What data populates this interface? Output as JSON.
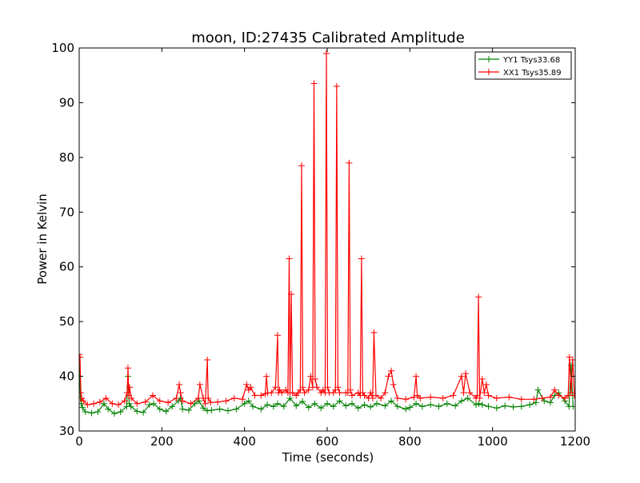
{
  "chart_data": {
    "type": "line",
    "title": "moon, ID:27435 Calibrated Amplitude",
    "xlabel": "Time (seconds)",
    "ylabel": "Power in Kelvin",
    "xlim": [
      0,
      1200
    ],
    "ylim": [
      30,
      100
    ],
    "xticks": [
      0,
      200,
      400,
      600,
      800,
      1000,
      1200
    ],
    "yticks": [
      30,
      40,
      50,
      60,
      70,
      80,
      90,
      100
    ],
    "xtick_labels": [
      "0",
      "200",
      "400",
      "600",
      "800",
      "1000",
      "1200"
    ],
    "ytick_labels": [
      "30",
      "40",
      "50",
      "60",
      "70",
      "80",
      "90",
      "100"
    ],
    "grid": false,
    "legend_position": "top-right",
    "marker": "+",
    "series": [
      {
        "name": "YY1 Tsys33.68",
        "color": "#008000",
        "x": [
          0,
          3,
          5,
          8,
          15,
          30,
          45,
          60,
          70,
          85,
          100,
          115,
          118,
          121,
          125,
          140,
          155,
          170,
          180,
          195,
          210,
          225,
          240,
          245,
          250,
          265,
          280,
          290,
          300,
          310,
          320,
          340,
          360,
          380,
          400,
          410,
          420,
          440,
          455,
          470,
          480,
          495,
          510,
          525,
          540,
          555,
          570,
          585,
          600,
          615,
          630,
          645,
          660,
          675,
          690,
          705,
          720,
          740,
          755,
          770,
          790,
          800,
          815,
          830,
          850,
          870,
          890,
          910,
          925,
          940,
          960,
          967,
          975,
          990,
          1010,
          1030,
          1050,
          1070,
          1090,
          1105,
          1110,
          1125,
          1140,
          1150,
          1160,
          1175,
          1185,
          1190,
          1195
        ],
        "values": [
          43.5,
          36,
          35,
          34.3,
          33.5,
          33.3,
          33.5,
          35,
          34,
          33.2,
          33.5,
          34.5,
          40,
          35,
          34.5,
          33.6,
          33.4,
          34.8,
          35,
          34,
          33.6,
          34.5,
          35.5,
          36,
          34,
          33.8,
          35,
          35.5,
          34.2,
          33.7,
          33.8,
          34,
          33.7,
          34,
          35,
          35.5,
          34.5,
          34,
          34.8,
          34.5,
          35,
          34.5,
          36,
          34.6,
          35.4,
          34.3,
          35,
          34.2,
          35,
          34.5,
          35.5,
          34.6,
          35,
          34.2,
          34.8,
          34.4,
          35,
          34.6,
          35.5,
          34.5,
          34,
          34.3,
          35,
          34.5,
          34.8,
          34.5,
          35,
          34.6,
          35.5,
          36,
          34.8,
          35,
          34.8,
          34.5,
          34.2,
          34.6,
          34.4,
          34.5,
          34.8,
          35.2,
          37.5,
          35.5,
          35.2,
          36.5,
          37,
          35.5,
          34.5,
          42,
          34.5
        ]
      },
      {
        "name": "XX1 Tsys35.89",
        "color": "#ff0000",
        "x": [
          0,
          2,
          4,
          6,
          10,
          20,
          35,
          50,
          65,
          80,
          95,
          110,
          116,
          118,
          120,
          122,
          126,
          140,
          160,
          178,
          195,
          215,
          235,
          242,
          245,
          250,
          270,
          288,
          292,
          300,
          305,
          310,
          312,
          318,
          335,
          355,
          375,
          395,
          405,
          410,
          415,
          425,
          440,
          450,
          453,
          456,
          465,
          475,
          480,
          482,
          485,
          490,
          500,
          505,
          508,
          510,
          513,
          516,
          525,
          530,
          535,
          538,
          541,
          545,
          555,
          560,
          565,
          568,
          571,
          575,
          585,
          590,
          595,
          598,
          601,
          605,
          615,
          620,
          623,
          626,
          630,
          645,
          650,
          653,
          656,
          660,
          675,
          680,
          683,
          686,
          690,
          700,
          705,
          710,
          713,
          718,
          730,
          740,
          748,
          755,
          760,
          770,
          790,
          810,
          815,
          818,
          825,
          850,
          880,
          905,
          925,
          930,
          935,
          945,
          960,
          963,
          966,
          969,
          975,
          980,
          985,
          990,
          1010,
          1040,
          1070,
          1100,
          1120,
          1140,
          1150,
          1160,
          1175,
          1183,
          1186,
          1190,
          1194,
          1198
        ],
        "values": [
          44,
          43.5,
          37,
          36,
          35.5,
          34.8,
          35,
          35.3,
          36,
          35,
          34.8,
          35.5,
          37,
          41.5,
          36.5,
          38,
          36,
          35,
          35.3,
          36.5,
          35.5,
          35.2,
          36,
          38.5,
          37,
          35.5,
          35,
          36,
          38.5,
          36,
          35,
          43,
          36,
          35.2,
          35.3,
          35.5,
          36,
          35.8,
          38.5,
          37.5,
          38,
          36.5,
          36.5,
          36.8,
          40,
          37,
          37,
          38,
          47.5,
          37,
          37.5,
          37,
          37.5,
          37,
          61.5,
          37,
          55,
          37,
          36.5,
          37,
          37.5,
          78.5,
          38,
          37,
          37.5,
          40,
          38,
          93.5,
          39.5,
          38,
          37,
          37.5,
          37,
          99,
          38,
          37,
          37,
          37.5,
          93,
          38,
          37,
          37,
          37,
          79,
          37.5,
          36.5,
          37,
          36.5,
          61.5,
          37,
          36.5,
          36,
          37,
          36,
          48,
          36.5,
          36,
          37,
          40,
          41,
          38.5,
          36,
          35.8,
          36.2,
          40,
          36.5,
          36,
          36.2,
          36,
          36.5,
          40,
          37,
          40.5,
          37,
          36,
          36.5,
          54.5,
          36,
          39.5,
          37,
          38.5,
          36.5,
          36,
          36.2,
          35.8,
          35.8,
          36,
          36.2,
          37.5,
          36.5,
          36,
          36.5,
          43.5,
          37,
          43,
          36.5
        ]
      }
    ]
  }
}
